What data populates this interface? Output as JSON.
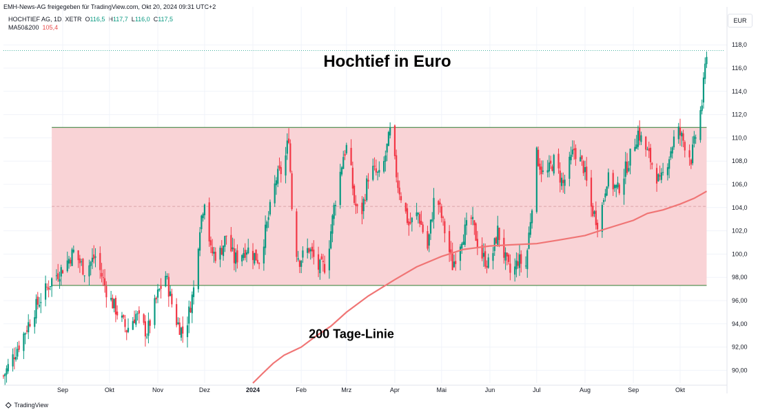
{
  "header": {
    "published": "EMH-News-AG freigegeben für TradingView.com, Okt 20, 2024 09:31 UTC+2",
    "symbol": "HOCHTIEF AG, 1D, XETR",
    "o_label": "O",
    "o": "116,5",
    "h_label": "H",
    "h": "117,7",
    "l_label": "L",
    "l": "116,0",
    "c_label": "C",
    "c": "117,5",
    "ma_label": "MA50&200",
    "ma_value": "105,4",
    "currency": "EUR"
  },
  "footer": {
    "brand": "TradingView",
    "logo": "tradingview-logo"
  },
  "colors": {
    "up": "#089981",
    "down": "#f23645",
    "ma": "#f07575",
    "range_fill": "#f9d3d6",
    "range_line": "#2e7d32"
  },
  "chart_data": {
    "type": "candlestick",
    "title": "Hochtief in Euro",
    "annotations": [
      {
        "text": "200 Tage-Linie",
        "x": "2024-01-20",
        "y": 93.0
      }
    ],
    "ylim": [
      88.9,
      118.9
    ],
    "y_ticks": [
      "90,00",
      "92,00",
      "94,00",
      "96,00",
      "98,00",
      "100,0",
      "102,0",
      "104,0",
      "106,0",
      "108,0",
      "110,0",
      "112,0",
      "114,0",
      "116,0",
      "118,0"
    ],
    "y_tick_values": [
      90,
      92,
      94,
      96,
      98,
      100,
      102,
      104,
      106,
      108,
      110,
      112,
      114,
      116,
      118
    ],
    "x_ticks": [
      {
        "label": "Sep",
        "date": "2023-09-01"
      },
      {
        "label": "Okt",
        "date": "2023-10-01"
      },
      {
        "label": "Nov",
        "date": "2023-11-01"
      },
      {
        "label": "Dez",
        "date": "2023-12-01"
      },
      {
        "label": "2024",
        "date": "2024-01-01",
        "bold": true
      },
      {
        "label": "Feb",
        "date": "2024-02-01"
      },
      {
        "label": "Mrz",
        "date": "2024-03-01"
      },
      {
        "label": "Apr",
        "date": "2024-04-01"
      },
      {
        "label": "Mai",
        "date": "2024-05-01"
      },
      {
        "label": "Jun",
        "date": "2024-06-01"
      },
      {
        "label": "Jul",
        "date": "2024-07-01"
      },
      {
        "label": "Aug",
        "date": "2024-08-01"
      },
      {
        "label": "Sep",
        "date": "2024-09-01"
      },
      {
        "label": "Okt",
        "date": "2024-10-01"
      }
    ],
    "range_box": {
      "from": "2023-08-25",
      "to": "2024-10-18",
      "low": 97.3,
      "high": 110.9,
      "mid": 104.1
    },
    "last_price_line": 117.5,
    "close_path": [
      [
        "2023-07-25",
        89.5
      ],
      [
        "2023-08-05",
        92.5
      ],
      [
        "2023-08-15",
        95.5
      ],
      [
        "2023-08-25",
        97.8
      ],
      [
        "2023-09-01",
        98.8
      ],
      [
        "2023-09-08",
        100.2
      ],
      [
        "2023-09-15",
        98.6
      ],
      [
        "2023-09-22",
        99.8
      ],
      [
        "2023-09-30",
        96.5
      ],
      [
        "2023-10-06",
        95.0
      ],
      [
        "2023-10-12",
        93.5
      ],
      [
        "2023-10-18",
        94.8
      ],
      [
        "2023-10-25",
        93.2
      ],
      [
        "2023-11-01",
        96.5
      ],
      [
        "2023-11-06",
        98.2
      ],
      [
        "2023-11-12",
        94.5
      ],
      [
        "2023-11-18",
        93.0
      ],
      [
        "2023-11-24",
        97.0
      ],
      [
        "2023-11-28",
        102.5
      ],
      [
        "2023-12-01",
        104.8
      ],
      [
        "2023-12-05",
        100.2
      ],
      [
        "2023-12-10",
        99.8
      ],
      [
        "2023-12-15",
        101.6
      ],
      [
        "2023-12-20",
        99.5
      ],
      [
        "2023-12-28",
        100.5
      ],
      [
        "2024-01-05",
        99.5
      ],
      [
        "2024-01-10",
        102.5
      ],
      [
        "2024-01-16",
        106.5
      ],
      [
        "2024-01-21",
        107.5
      ],
      [
        "2024-01-24",
        110.2
      ],
      [
        "2024-01-27",
        101.0
      ],
      [
        "2024-01-31",
        99.5
      ],
      [
        "2024-02-06",
        100.5
      ],
      [
        "2024-02-12",
        98.8
      ],
      [
        "2024-02-17",
        99.0
      ],
      [
        "2024-02-22",
        104.0
      ],
      [
        "2024-02-28",
        108.5
      ],
      [
        "2024-03-02",
        109.5
      ],
      [
        "2024-03-06",
        104.5
      ],
      [
        "2024-03-10",
        103.0
      ],
      [
        "2024-03-16",
        107.5
      ],
      [
        "2024-03-23",
        106.5
      ],
      [
        "2024-03-29",
        110.5
      ],
      [
        "2024-04-03",
        106.0
      ],
      [
        "2024-04-10",
        102.5
      ],
      [
        "2024-04-16",
        103.5
      ],
      [
        "2024-04-22",
        100.5
      ],
      [
        "2024-04-27",
        105.5
      ],
      [
        "2024-05-03",
        102.0
      ],
      [
        "2024-05-08",
        99.0
      ],
      [
        "2024-05-14",
        101.5
      ],
      [
        "2024-05-20",
        103.0
      ],
      [
        "2024-05-26",
        100.0
      ],
      [
        "2024-06-01",
        99.0
      ],
      [
        "2024-06-06",
        102.0
      ],
      [
        "2024-06-11",
        99.5
      ],
      [
        "2024-06-15",
        98.0
      ],
      [
        "2024-06-19",
        99.5
      ],
      [
        "2024-06-24",
        99.0
      ],
      [
        "2024-07-01",
        108.5
      ],
      [
        "2024-07-06",
        106.5
      ],
      [
        "2024-07-12",
        108.0
      ],
      [
        "2024-07-18",
        106.0
      ],
      [
        "2024-07-25",
        109.0
      ],
      [
        "2024-07-31",
        107.5
      ],
      [
        "2024-08-05",
        104.0
      ],
      [
        "2024-08-10",
        102.5
      ],
      [
        "2024-08-15",
        106.5
      ],
      [
        "2024-08-22",
        105.5
      ],
      [
        "2024-08-29",
        108.0
      ],
      [
        "2024-09-04",
        110.5
      ],
      [
        "2024-09-09",
        109.0
      ],
      [
        "2024-09-14",
        107.5
      ],
      [
        "2024-09-18",
        106.0
      ],
      [
        "2024-09-24",
        108.5
      ],
      [
        "2024-09-29",
        110.8
      ],
      [
        "2024-10-04",
        109.5
      ],
      [
        "2024-10-08",
        108.2
      ],
      [
        "2024-10-12",
        110.8
      ],
      [
        "2024-10-15",
        113.0
      ],
      [
        "2024-10-18",
        117.5
      ]
    ],
    "ma200": [
      [
        "2024-01-01",
        88.9
      ],
      [
        "2024-01-07",
        89.7
      ],
      [
        "2024-01-14",
        90.6
      ],
      [
        "2024-01-21",
        91.3
      ],
      [
        "2024-02-01",
        92.0
      ],
      [
        "2024-02-10",
        92.9
      ],
      [
        "2024-02-20",
        93.8
      ],
      [
        "2024-03-01",
        95.0
      ],
      [
        "2024-03-15",
        96.4
      ],
      [
        "2024-04-01",
        97.8
      ],
      [
        "2024-04-15",
        98.9
      ],
      [
        "2024-05-01",
        99.8
      ],
      [
        "2024-05-15",
        100.4
      ],
      [
        "2024-06-01",
        100.7
      ],
      [
        "2024-06-15",
        100.8
      ],
      [
        "2024-07-01",
        100.9
      ],
      [
        "2024-07-15",
        101.2
      ],
      [
        "2024-08-01",
        101.6
      ],
      [
        "2024-08-15",
        102.2
      ],
      [
        "2024-09-01",
        102.9
      ],
      [
        "2024-09-10",
        103.5
      ],
      [
        "2024-09-20",
        103.8
      ],
      [
        "2024-10-01",
        104.3
      ],
      [
        "2024-10-10",
        104.8
      ],
      [
        "2024-10-18",
        105.4
      ]
    ]
  }
}
